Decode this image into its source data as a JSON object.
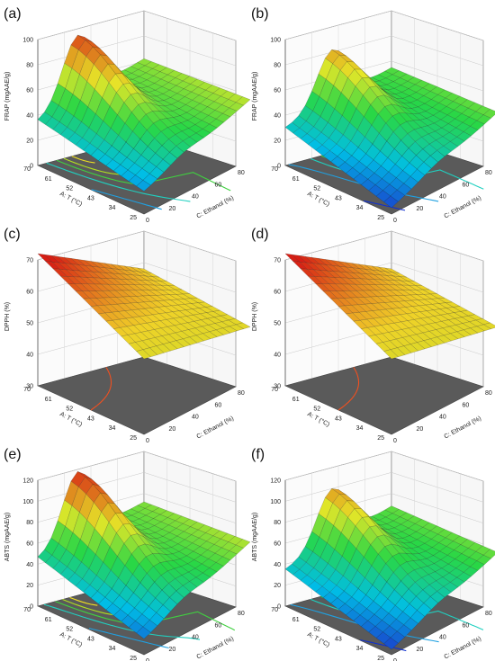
{
  "figure": {
    "panels": [
      {
        "label": "(a)"
      },
      {
        "label": "(b)"
      },
      {
        "label": "(c)"
      },
      {
        "label": "(d)"
      },
      {
        "label": "(e)"
      },
      {
        "label": "(f)"
      }
    ]
  },
  "chart_data": [
    {
      "type": "surface3d",
      "panel_label": "(a)",
      "zlabel": "FRAP (mgAAE/g)",
      "xlabel": "C: Ethanol (%)",
      "ylabel": "A: T (°C)",
      "z_ticks": [
        "0",
        "20",
        "40",
        "60",
        "80",
        "100"
      ],
      "x_ticks": [
        "0",
        "20",
        "40",
        "60",
        "80"
      ],
      "y_ticks": [
        "25",
        "34",
        "43",
        "52",
        "61",
        "70"
      ],
      "zlim": [
        0,
        100
      ],
      "xlim": [
        0,
        80
      ],
      "ylim": [
        25,
        70
      ],
      "surface_corners": {
        "T70_E0": 35,
        "T70_E80": 62,
        "T25_E0": 18,
        "T25_E80": 68
      },
      "surface_peak": {
        "ethanol": 30,
        "temperature": 70,
        "value": 95
      },
      "colormap": "blue-cyan-green-yellow-red",
      "floor_color": "#5a5a5a",
      "contour_colors": [
        "#1030d0",
        "#20a0e0",
        "#20d0c0",
        "#40d040",
        "#b0e020",
        "#f0e020"
      ]
    },
    {
      "type": "surface3d",
      "panel_label": "(b)",
      "zlabel": "FRAP (mgAAE/g)",
      "xlabel": "C: Ethanol (%)",
      "ylabel": "A: T (°C)",
      "z_ticks": [
        "0",
        "20",
        "40",
        "60",
        "80",
        "100"
      ],
      "x_ticks": [
        "0",
        "20",
        "40",
        "60",
        "80"
      ],
      "y_ticks": [
        "25",
        "34",
        "43",
        "52",
        "61",
        "70"
      ],
      "zlim": [
        0,
        100
      ],
      "xlim": [
        0,
        80
      ],
      "ylim": [
        25,
        70
      ],
      "surface_corners": {
        "T70_E0": 30,
        "T70_E80": 55,
        "T25_E0": 5,
        "T25_E80": 58
      },
      "surface_peak": {
        "ethanol": 35,
        "temperature": 70,
        "value": 82
      },
      "colormap": "blue-cyan-green-yellow-red",
      "floor_color": "#5a5a5a",
      "contour_colors": [
        "#1030d0",
        "#20a0e0",
        "#20d0c0",
        "#40d040",
        "#b0e020"
      ]
    },
    {
      "type": "surface3d",
      "panel_label": "(c)",
      "zlabel": "DPPH (%)",
      "xlabel": "C: Ethanol (%)",
      "ylabel": "A: T (°C)",
      "z_ticks": [
        "30",
        "40",
        "50",
        "60",
        "70"
      ],
      "x_ticks": [
        "0",
        "20",
        "40",
        "60",
        "80"
      ],
      "y_ticks": [
        "25",
        "34",
        "43",
        "52",
        "61",
        "70"
      ],
      "zlim": [
        30,
        70
      ],
      "xlim": [
        0,
        80
      ],
      "ylim": [
        25,
        70
      ],
      "surface_corners": {
        "T70_E0": 72,
        "T70_E80": 58,
        "T25_E0": 54,
        "T25_E80": 55
      },
      "colormap": "green-yellow-red",
      "floor_color": "#5a5a5a",
      "contour_colors": [
        "#d0d020",
        "#e0b020",
        "#f08020",
        "#f05020"
      ]
    },
    {
      "type": "surface3d",
      "panel_label": "(d)",
      "zlabel": "DPPH (%)",
      "xlabel": "C: Ethanol (%)",
      "ylabel": "A: T (°C)",
      "z_ticks": [
        "30",
        "40",
        "50",
        "60",
        "70"
      ],
      "x_ticks": [
        "0",
        "20",
        "40",
        "60",
        "80"
      ],
      "y_ticks": [
        "25",
        "34",
        "43",
        "52",
        "61",
        "70"
      ],
      "zlim": [
        30,
        70
      ],
      "xlim": [
        0,
        80
      ],
      "ylim": [
        25,
        70
      ],
      "surface_corners": {
        "T70_E0": 72,
        "T70_E80": 58,
        "T25_E0": 54,
        "T25_E80": 55
      },
      "colormap": "green-yellow-red",
      "floor_color": "#5a5a5a",
      "contour_colors": [
        "#d0d020",
        "#e0b020",
        "#f08020",
        "#f05020"
      ]
    },
    {
      "type": "surface3d",
      "panel_label": "(e)",
      "zlabel": "ABTS (mgAAE/g)",
      "xlabel": "C: Ethanol (%)",
      "ylabel": "A: T (°C)",
      "z_ticks": [
        "0",
        "20",
        "40",
        "60",
        "80",
        "100",
        "120"
      ],
      "x_ticks": [
        "0",
        "20",
        "40",
        "60",
        "80"
      ],
      "y_ticks": [
        "25",
        "34",
        "43",
        "52",
        "61",
        "70"
      ],
      "zlim": [
        0,
        120
      ],
      "xlim": [
        0,
        80
      ],
      "ylim": [
        25,
        70
      ],
      "surface_corners": {
        "T70_E0": 45,
        "T70_E80": 72,
        "T25_E0": 15,
        "T25_E80": 80
      },
      "surface_peak": {
        "ethanol": 30,
        "temperature": 70,
        "value": 118
      },
      "colormap": "blue-cyan-green-yellow-red",
      "floor_color": "#5a5a5a",
      "contour_colors": [
        "#1030d0",
        "#20a0e0",
        "#20d0c0",
        "#40d040",
        "#b0e020",
        "#f0e020"
      ]
    },
    {
      "type": "surface3d",
      "panel_label": "(f)",
      "zlabel": "ABTS (mgAAE/g)",
      "xlabel": "C: Ethanol (%)",
      "ylabel": "A: T (°C)",
      "z_ticks": [
        "0",
        "20",
        "40",
        "60",
        "80",
        "100",
        "120"
      ],
      "x_ticks": [
        "0",
        "20",
        "40",
        "60",
        "80"
      ],
      "y_ticks": [
        "25",
        "34",
        "43",
        "52",
        "61",
        "70"
      ],
      "zlim": [
        0,
        120
      ],
      "xlim": [
        0,
        80
      ],
      "ylim": [
        25,
        70
      ],
      "surface_corners": {
        "T70_E0": 35,
        "T70_E80": 68,
        "T25_E0": 5,
        "T25_E80": 70
      },
      "surface_peak": {
        "ethanol": 35,
        "temperature": 70,
        "value": 100
      },
      "colormap": "blue-cyan-green-yellow-red",
      "floor_color": "#5a5a5a",
      "contour_colors": [
        "#1030d0",
        "#20a0e0",
        "#20d0c0",
        "#40d040",
        "#b0e020"
      ]
    }
  ]
}
